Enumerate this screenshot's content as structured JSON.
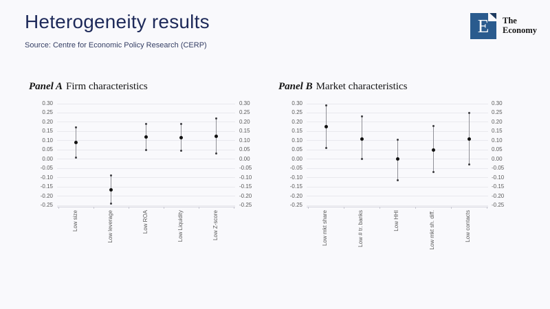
{
  "slide": {
    "title": "Heterogeneity results",
    "source": "Source: Centre for Economic Policy Research (CERP)"
  },
  "logo": {
    "letter": "E",
    "line1": "The",
    "line2": "Economy"
  },
  "colors": {
    "title_navy": "#1e2a5a",
    "logo_blue": "#2a5b8e",
    "logo_flag_navy": "#1d3a5f",
    "marker_black": "#111111",
    "whisker_gray": "#8f8f96",
    "gridline": "#e9e9ee",
    "tick_label_gray": "#595959",
    "background": "#f9f9fc"
  },
  "chart_data": [
    {
      "type": "scatter",
      "subtype": "dot-with-error-bars",
      "panel_label": "Panel A",
      "title": "Firm characteristics",
      "categories": [
        "Low size",
        "Low leverage",
        "Low ROA",
        "Low Liquidity",
        "Low Z-score"
      ],
      "estimates": [
        0.09,
        -0.165,
        0.12,
        0.115,
        0.125
      ],
      "ci_high": [
        0.17,
        -0.09,
        0.19,
        0.19,
        0.22
      ],
      "ci_low": [
        0.01,
        -0.24,
        0.05,
        0.045,
        0.03
      ],
      "ylim": [
        -0.25,
        0.3
      ],
      "ytick_step": 0.05,
      "grid": true,
      "y_axis_labels": "both-sides",
      "x_label_rotation": 90
    },
    {
      "type": "scatter",
      "subtype": "dot-with-error-bars",
      "panel_label": "Panel B",
      "title": "Market characteristics",
      "categories": [
        "Low mkt share",
        "Low # tr. banks",
        "Low HHI",
        "Low mkt sh. diff.",
        "Low contacts"
      ],
      "estimates": [
        0.175,
        0.11,
        0.0,
        0.05,
        0.11
      ],
      "ci_high": [
        0.29,
        0.23,
        0.105,
        0.18,
        0.25
      ],
      "ci_low": [
        0.06,
        0.0,
        -0.115,
        -0.07,
        -0.03
      ],
      "ylim": [
        -0.25,
        0.3
      ],
      "ytick_step": 0.05,
      "grid": true,
      "y_axis_labels": "both-sides",
      "x_label_rotation": 90
    }
  ]
}
